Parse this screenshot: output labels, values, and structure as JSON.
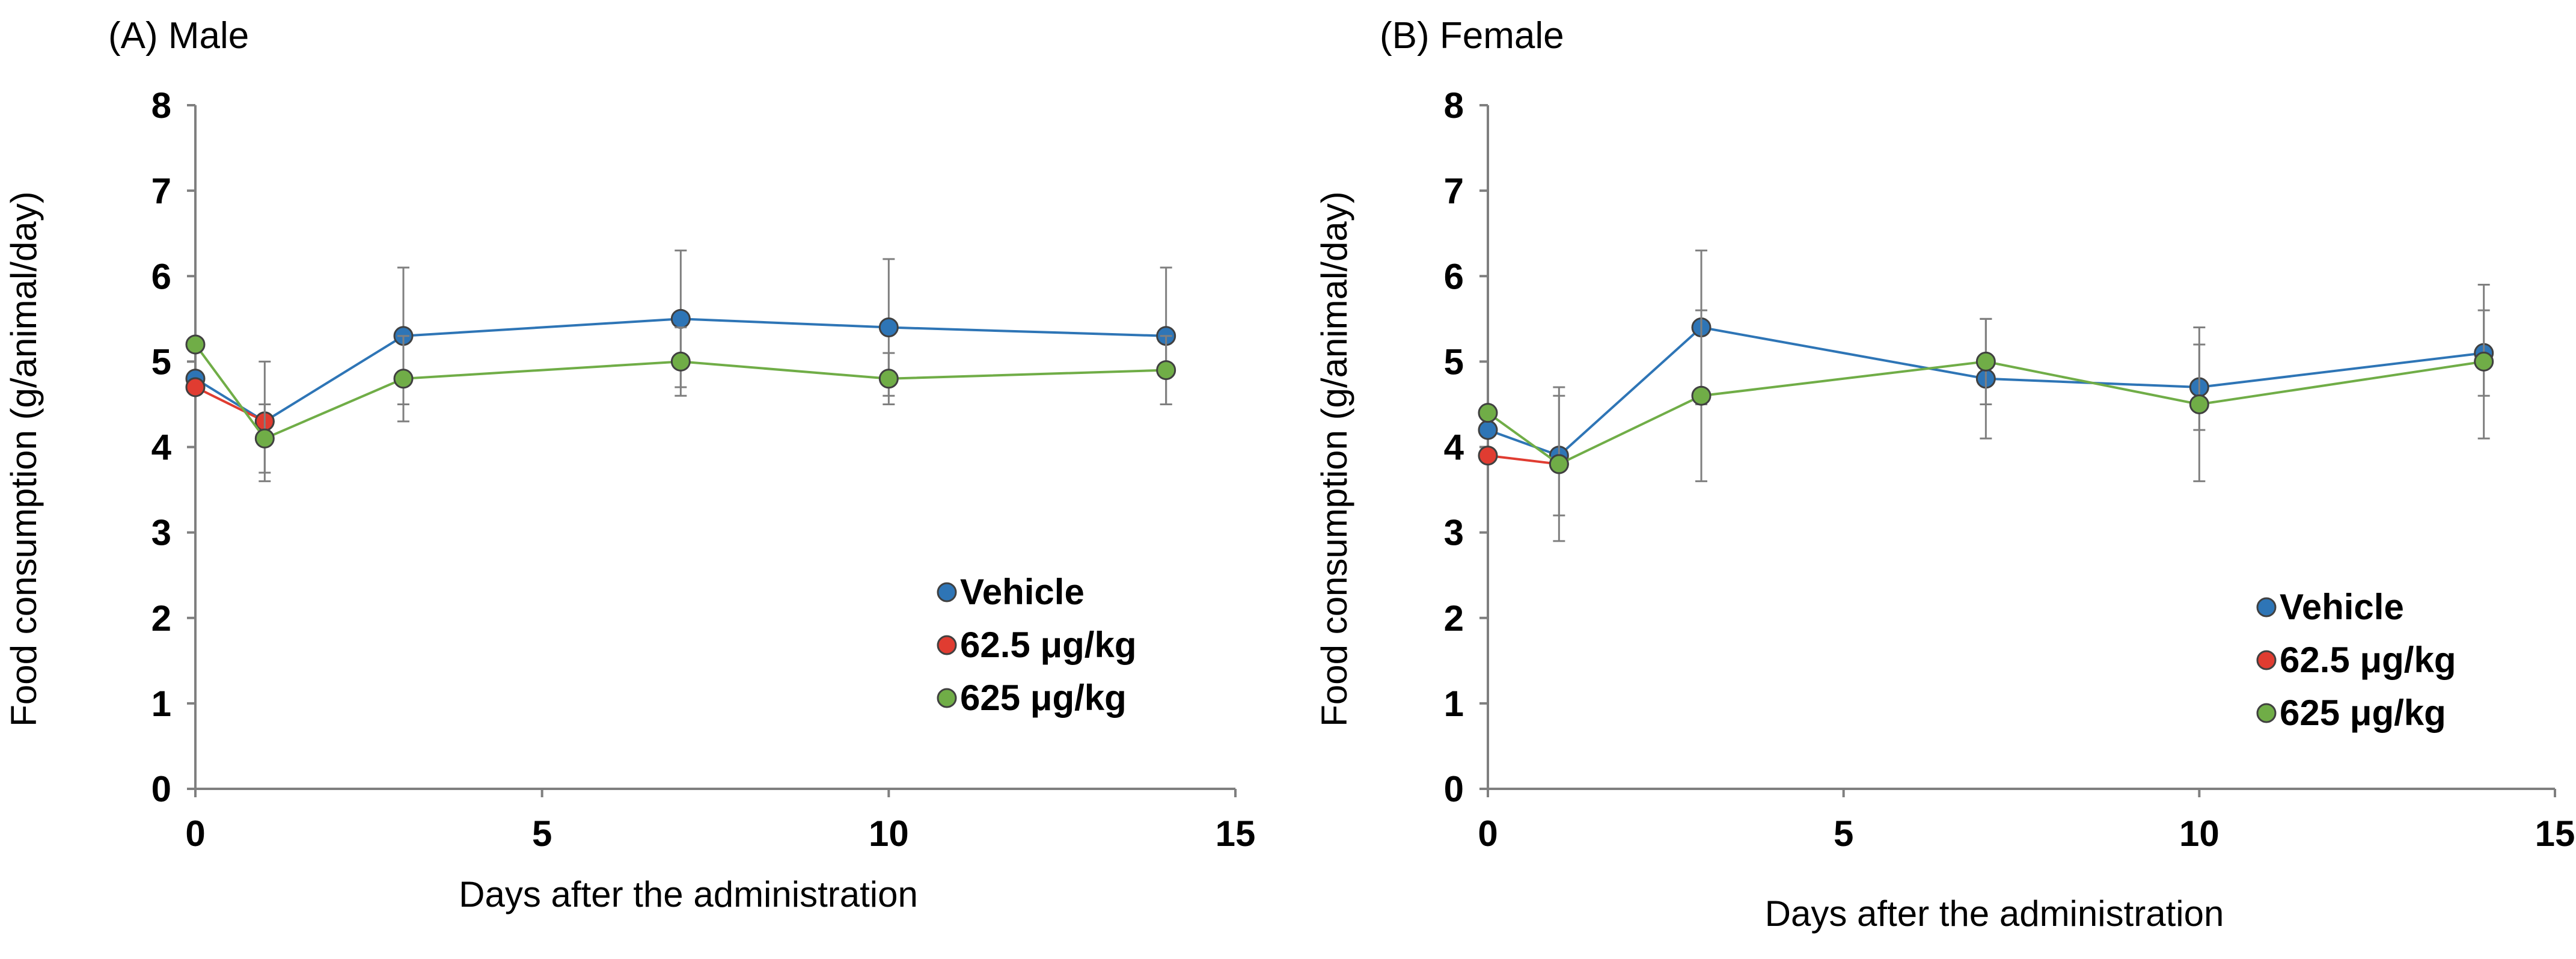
{
  "chart_data": [
    {
      "type": "line",
      "title": "(A) Male",
      "xlabel": "Days after the administration",
      "ylabel": "Food consumption (g/animal/day)",
      "xlim": [
        0,
        15
      ],
      "ylim": [
        0,
        8
      ],
      "xticks": [
        0,
        5,
        10,
        15
      ],
      "yticks": [
        0,
        1,
        2,
        3,
        4,
        5,
        6,
        7,
        8
      ],
      "legend_position": "bottom-right",
      "series": [
        {
          "name": "Vehicle",
          "color": "#2e75b6",
          "x": [
            0,
            1,
            3,
            7,
            10,
            14
          ],
          "y": [
            4.8,
            4.3,
            5.3,
            5.5,
            5.4,
            5.3
          ],
          "err": [
            0,
            0.7,
            0.8,
            0.8,
            0.8,
            0.8
          ]
        },
        {
          "name": "62.5 μg/kg",
          "color": "#e03c31",
          "x": [
            0,
            1
          ],
          "y": [
            4.7,
            4.3
          ],
          "err": [
            0,
            0
          ]
        },
        {
          "name": "625 μg/kg",
          "color": "#70ad47",
          "x": [
            0,
            1,
            3,
            7,
            10,
            14
          ],
          "y": [
            5.2,
            4.1,
            4.8,
            5.0,
            4.8,
            4.9
          ],
          "err": [
            0,
            0.4,
            0.5,
            0.4,
            0.3,
            0.4
          ]
        }
      ]
    },
    {
      "type": "line",
      "title": "(B) Female",
      "xlabel": "Days after the administration",
      "ylabel": "Food consumption (g/animal/day)",
      "xlim": [
        0,
        15
      ],
      "ylim": [
        0,
        8
      ],
      "xticks": [
        0,
        5,
        10,
        15
      ],
      "yticks": [
        0,
        1,
        2,
        3,
        4,
        5,
        6,
        7,
        8
      ],
      "legend_position": "bottom-right",
      "series": [
        {
          "name": "Vehicle",
          "color": "#2e75b6",
          "x": [
            0,
            1,
            3,
            7,
            10,
            14
          ],
          "y": [
            4.2,
            3.9,
            5.4,
            4.8,
            4.7,
            5.1
          ],
          "err": [
            0,
            0.7,
            0.9,
            0.7,
            0.5,
            0.5
          ]
        },
        {
          "name": "62.5 μg/kg",
          "color": "#e03c31",
          "x": [
            0,
            1
          ],
          "y": [
            3.9,
            3.8
          ],
          "err": [
            0,
            0
          ]
        },
        {
          "name": "625 μg/kg",
          "color": "#70ad47",
          "x": [
            0,
            1,
            3,
            7,
            10,
            14
          ],
          "y": [
            4.4,
            3.8,
            4.6,
            5.0,
            4.5,
            5.0
          ],
          "err": [
            0,
            0.9,
            1.0,
            0.5,
            0.9,
            0.9
          ]
        }
      ]
    }
  ]
}
